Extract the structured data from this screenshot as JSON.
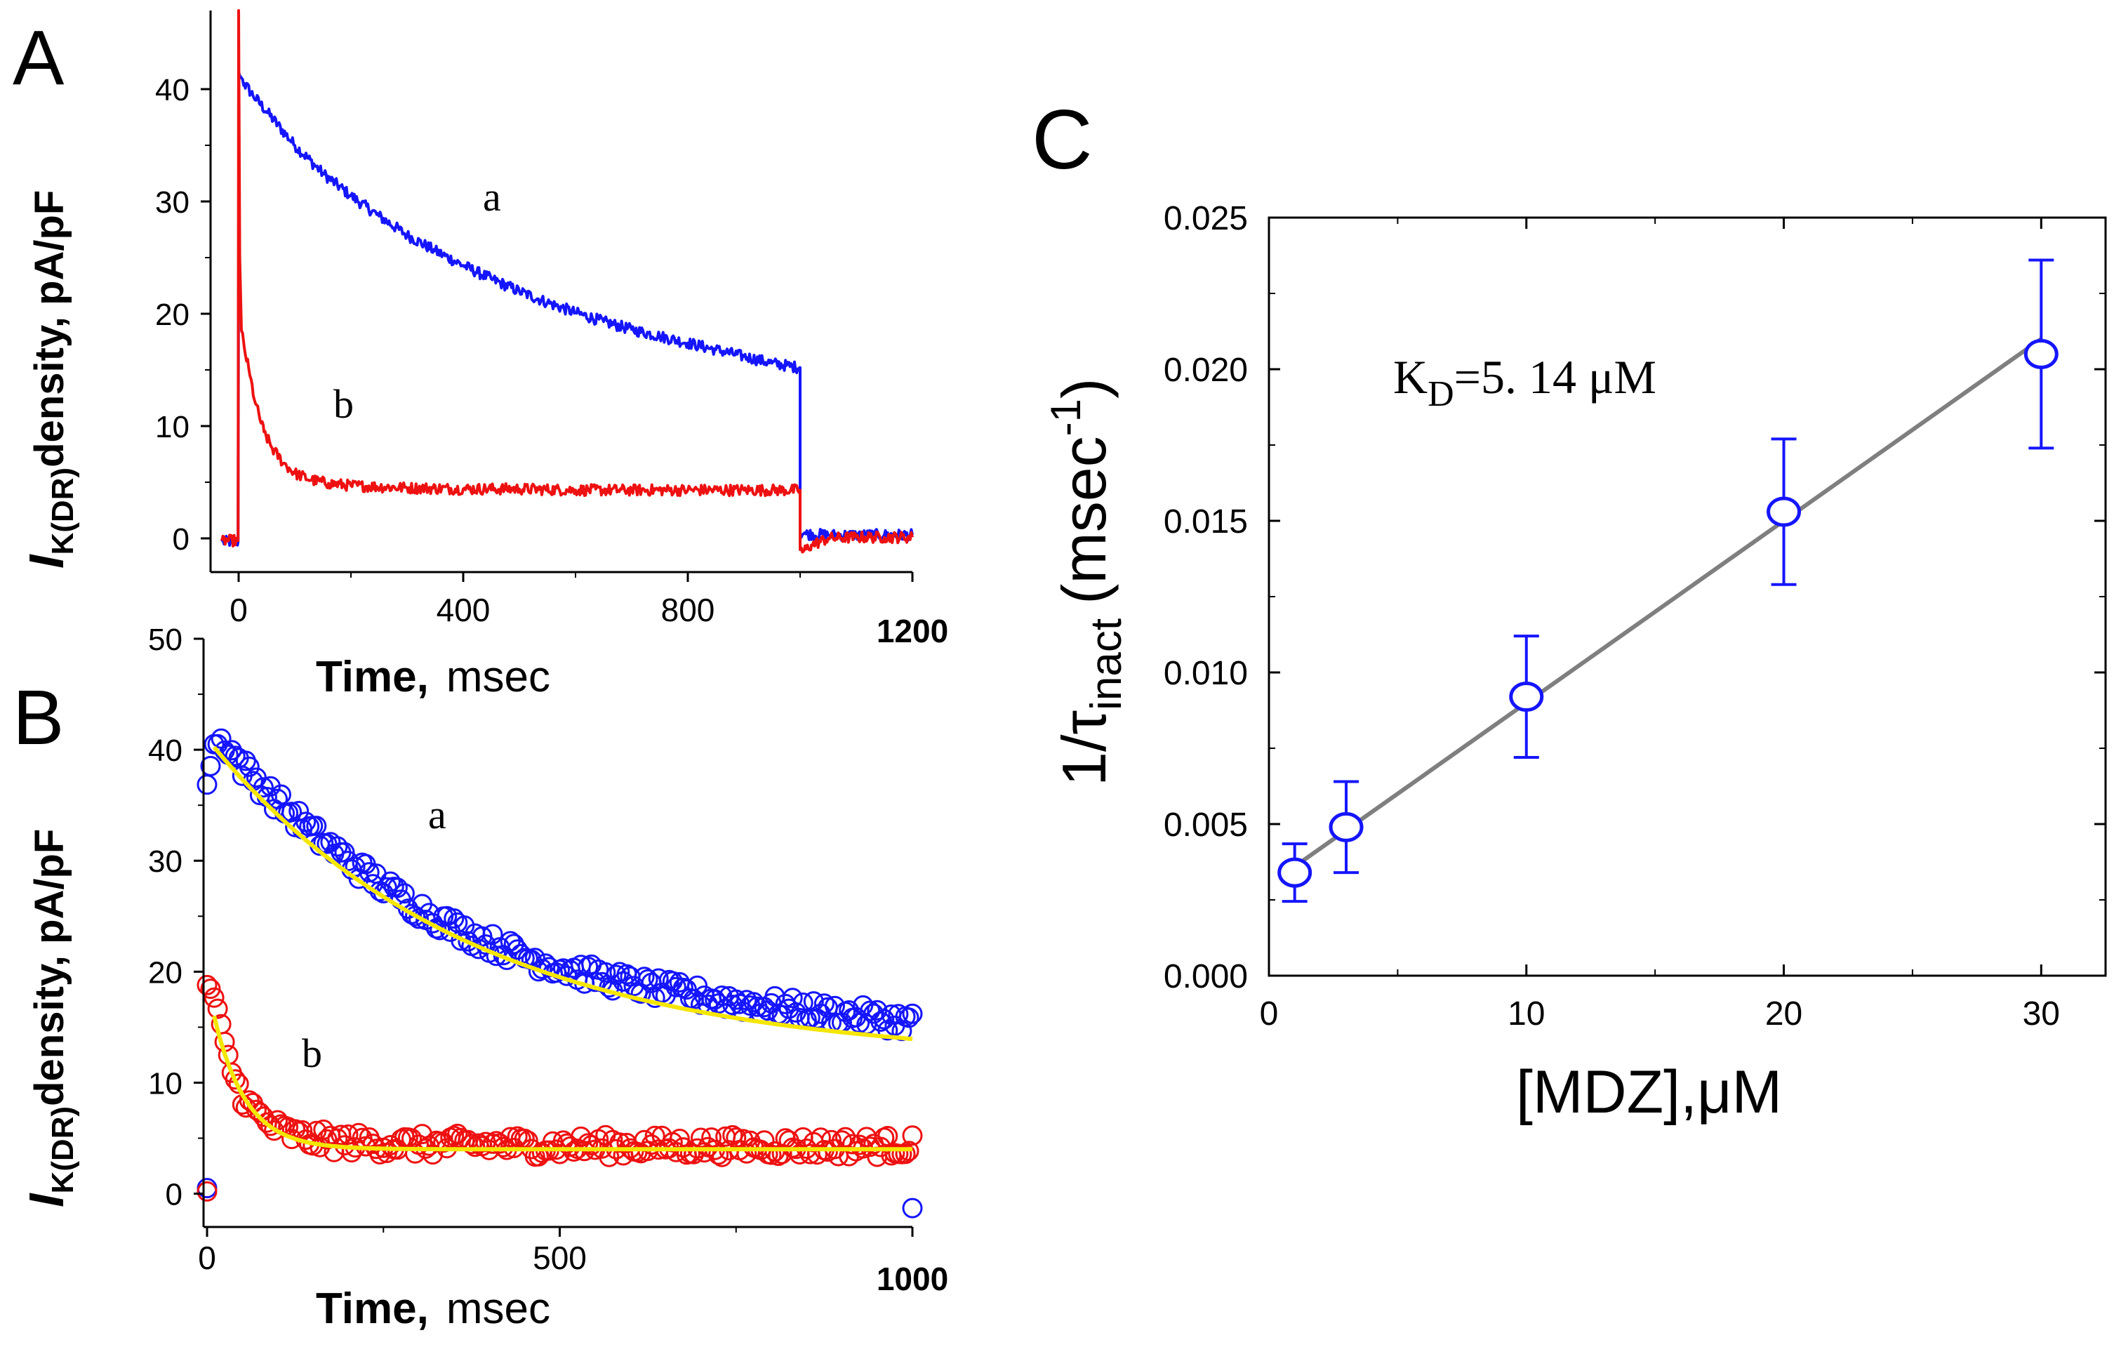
{
  "chart_data": [
    {
      "panel": "A",
      "type": "line",
      "xlabel": "Time,",
      "xunit": "msec",
      "ylabel_main": "I",
      "ylabel_sub": "K(DR)",
      "ylabel_rest": "density, pA/pF",
      "xlim": [
        -50,
        1200
      ],
      "ylim": [
        -3,
        47
      ],
      "xticks": [
        0,
        400,
        800,
        1200
      ],
      "xtick_labels": [
        "0",
        "400",
        "800",
        "1200"
      ],
      "yticks": [
        0,
        10,
        20,
        30,
        40
      ],
      "ytick_labels": [
        "0",
        "10",
        "20",
        "30",
        "40"
      ],
      "series": [
        {
          "name": "a",
          "color": "#1515ff",
          "x": [
            -30,
            -1,
            0,
            0,
            2,
            5,
            10,
            25,
            50,
            100,
            150,
            200,
            250,
            300,
            350,
            400,
            450,
            500,
            550,
            600,
            650,
            700,
            750,
            800,
            850,
            900,
            950,
            999,
            1000,
            1000,
            1010,
            1050,
            1100,
            1150,
            1200
          ],
          "y": [
            -0.3,
            -0.3,
            25,
            41.5,
            41.2,
            41,
            40.5,
            39.5,
            38,
            35,
            32.5,
            30.5,
            28.7,
            27,
            25.6,
            24.3,
            23.1,
            22,
            21,
            20.1,
            19.3,
            18.6,
            18,
            17.4,
            16.8,
            16.2,
            15.6,
            15.2,
            15.2,
            0.5,
            0.4,
            0.3,
            0.3,
            0.3,
            0.3
          ]
        },
        {
          "name": "b",
          "color": "#ee1111",
          "x": [
            -30,
            -1,
            0,
            0,
            2,
            5,
            10,
            20,
            30,
            45,
            60,
            80,
            100,
            130,
            160,
            200,
            300,
            400,
            500,
            600,
            700,
            800,
            900,
            999,
            1000,
            1000,
            1005,
            1020,
            1050,
            1100,
            1150,
            1200
          ],
          "y": [
            -0.2,
            -0.2,
            47,
            47,
            25,
            18.5,
            17,
            14.5,
            12,
            9.5,
            8,
            6.7,
            5.8,
            5.2,
            4.9,
            4.7,
            4.5,
            4.4,
            4.4,
            4.3,
            4.3,
            4.3,
            4.3,
            4.3,
            4.3,
            -1,
            -1.2,
            -0.6,
            0,
            0.1,
            0.1,
            0.1
          ]
        }
      ],
      "annotations": [
        "a",
        "b"
      ]
    },
    {
      "panel": "B",
      "type": "scatter",
      "xlabel": "Time,",
      "xunit": "msec",
      "ylabel_main": "I",
      "ylabel_sub": "K(DR)",
      "ylabel_rest": "density, pA/pF",
      "xlim": [
        -5,
        1000
      ],
      "ylim": [
        -3,
        50
      ],
      "xticks": [
        0,
        500,
        1000
      ],
      "xtick_labels": [
        "0",
        "500",
        "1000"
      ],
      "yticks": [
        0,
        10,
        20,
        30,
        40,
        50
      ],
      "ytick_labels": [
        "0",
        "10",
        "20",
        "30",
        "40",
        "50"
      ],
      "series": [
        {
          "name": "a",
          "color": "#1515ff",
          "fit": {
            "model": "single-exponential",
            "amplitude": 29,
            "tau_msec": 370,
            "baseline": 12
          },
          "fit_range": [
            10,
            1000
          ],
          "x_samples": [
            0,
            10,
            25,
            50,
            100,
            150,
            200,
            250,
            300,
            350,
            400,
            450,
            500,
            550,
            600,
            650,
            700,
            750,
            800,
            850,
            900,
            950,
            1000
          ],
          "y_samples": [
            37.5,
            40.5,
            40.7,
            38.5,
            35.3,
            32.5,
            30,
            27.7,
            25.7,
            24,
            22.6,
            21.4,
            20.4,
            19.6,
            18.9,
            18.3,
            17.8,
            17.3,
            16.9,
            16.5,
            16.2,
            15.8,
            15.5
          ],
          "outlier_points": [
            [
              0,
              0.5
            ],
            [
              1000,
              -1.3
            ]
          ]
        },
        {
          "name": "b",
          "color": "#ee1111",
          "fit": {
            "model": "single-exponential",
            "amplitude": 15,
            "tau_msec": 45,
            "baseline": 4
          },
          "fit_range": [
            10,
            1000
          ],
          "x_samples": [
            0,
            5,
            10,
            20,
            30,
            45,
            60,
            80,
            100,
            130,
            160,
            200,
            300,
            400,
            500,
            600,
            700,
            800,
            900,
            1000
          ],
          "y_samples": [
            19,
            18.5,
            17.5,
            14.5,
            12,
            9.5,
            8,
            6.6,
            5.8,
            5.1,
            4.8,
            4.6,
            4.4,
            4.4,
            4.3,
            4.3,
            4.3,
            4.3,
            4.3,
            4.3
          ],
          "outlier_points": [
            [
              0,
              0.2
            ]
          ]
        }
      ],
      "fit_color": "#f5e600",
      "annotations": [
        "a",
        "b"
      ]
    },
    {
      "panel": "C",
      "type": "scatter",
      "xlabel": "[MDZ],",
      "xunit": "μM",
      "ylabel_prefix": "1/τ",
      "ylabel_sub": "inact",
      "ylabel_unit": "(msec",
      "ylabel_sup": "-1",
      "ylabel_close": ")",
      "xlim": [
        0,
        32.5
      ],
      "ylim": [
        0,
        0.025
      ],
      "xticks": [
        0,
        10,
        20,
        30
      ],
      "xtick_labels": [
        "0",
        "10",
        "20",
        "30"
      ],
      "yticks": [
        0,
        0.005,
        0.01,
        0.015,
        0.02,
        0.025
      ],
      "ytick_labels": [
        "0.000",
        "0.005",
        "0.010",
        "0.015",
        "0.020",
        "0.025"
      ],
      "series": [
        {
          "name": "1/tau_inact",
          "color": "#1515ff",
          "x": [
            1,
            3,
            10,
            20,
            30
          ],
          "y": [
            0.0034,
            0.0049,
            0.0092,
            0.0153,
            0.0205
          ],
          "error": [
            0.00095,
            0.0015,
            0.002,
            0.0024,
            0.0031
          ]
        }
      ],
      "fit_line": {
        "x": [
          1,
          30
        ],
        "y": [
          0.0036,
          0.021
        ],
        "color": "#7f7f7f"
      },
      "annotation": {
        "k": "K",
        "k_sub": "D",
        "value": "=5. 14  μM"
      }
    }
  ]
}
